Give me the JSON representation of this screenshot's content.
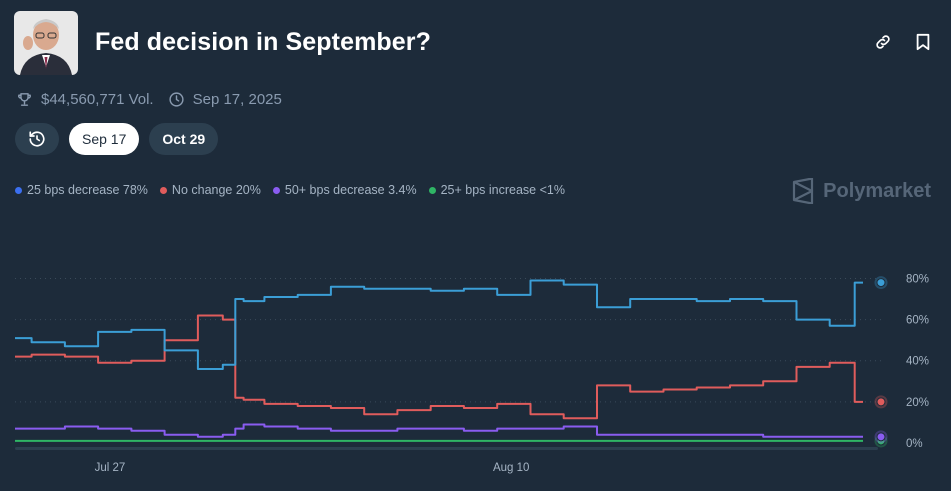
{
  "header": {
    "title": "Fed decision in September?",
    "volume": "$44,560,771 Vol.",
    "date": "Sep 17, 2025"
  },
  "tabs": [
    {
      "label": "Sep 17",
      "active": true
    },
    {
      "label": "Oct 29",
      "active": false
    }
  ],
  "brand": "Polymarket",
  "colors": {
    "background": "#1d2b3a",
    "blue": "#3b9ed6",
    "red": "#e05c5c",
    "purple": "#8a5cf0",
    "green": "#2fb565"
  },
  "icons": [
    "avatar-photo",
    "link-icon",
    "bookmark-icon",
    "trophy-icon",
    "clock-icon",
    "history-icon",
    "polymarket-logo"
  ],
  "chart_data": {
    "type": "line",
    "x_ticks": [
      "Jul 27",
      "Aug 10"
    ],
    "y_ticks": [
      "80%",
      "60%",
      "40%",
      "20%",
      "0%"
    ],
    "ylim": [
      0,
      100
    ],
    "grid": true,
    "legend_position": "top-left",
    "x": [
      0,
      2,
      4,
      6,
      8,
      10,
      12,
      13,
      13.5,
      14,
      16,
      18,
      20,
      22,
      24,
      26,
      28,
      30,
      32,
      34,
      36,
      38,
      40,
      42,
      44,
      46,
      48,
      50,
      51
    ],
    "series": [
      {
        "name": "25 bps decrease",
        "label": "25 bps decrease 78%",
        "color": "#3b9ed6",
        "values": [
          51,
          49,
          47,
          54,
          55,
          45,
          36,
          38,
          70,
          69,
          71,
          72,
          76,
          75,
          75,
          74,
          75,
          72,
          79,
          77,
          66,
          70,
          70,
          69,
          70,
          69,
          60,
          57,
          78
        ]
      },
      {
        "name": "No change",
        "label": "No change 20%",
        "color": "#e05c5c",
        "values": [
          42,
          43,
          42,
          39,
          40,
          50,
          62,
          60,
          22,
          21,
          19,
          18,
          17,
          14,
          16,
          18,
          17,
          19,
          14,
          12,
          28,
          25,
          26,
          27,
          28,
          30,
          37,
          39,
          20
        ]
      },
      {
        "name": "50+ bps decrease",
        "label": "50+ bps decrease 3.4%",
        "color": "#8a5cf0",
        "values": [
          7,
          7,
          8,
          7,
          6,
          4,
          3,
          4,
          7,
          9,
          8,
          7,
          6,
          6,
          7,
          7,
          6,
          7,
          7,
          8,
          4,
          4,
          4,
          4,
          4,
          3,
          3,
          3,
          3
        ]
      },
      {
        "name": "25+ bps increase",
        "label": "25+ bps increase <1%",
        "color": "#2fb565",
        "values": [
          1,
          1,
          1,
          1,
          1,
          1,
          1,
          1,
          1,
          1,
          1,
          1,
          1,
          1,
          1,
          1,
          1,
          1,
          1,
          1,
          1,
          1,
          1,
          1,
          1,
          1,
          1,
          1,
          1
        ]
      }
    ]
  }
}
